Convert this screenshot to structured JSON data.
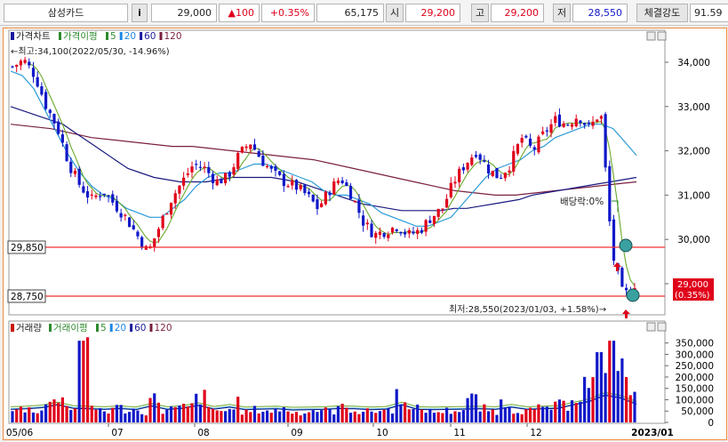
{
  "ticker_bar": {
    "stock_name": "삼성카드",
    "info_button": "i",
    "price": "29,000",
    "change": "▲100",
    "change_pct": "+0.35%",
    "volume": "65,175",
    "open_label": "시",
    "open": "29,200",
    "high_label": "고",
    "high": "29,200",
    "low_label": "저",
    "low": "28,550",
    "strength_label": "체결강도",
    "strength": "91.59"
  },
  "price_panel": {
    "legend": [
      {
        "label": "가격차트",
        "color": "#1a1a9c"
      },
      {
        "label": "가격이평",
        "color": "#2e8b2e"
      },
      {
        "label": "5",
        "color": "#2e8b2e"
      },
      {
        "label": "20",
        "color": "#1e88e5"
      },
      {
        "label": "60",
        "color": "#1a1a9c"
      },
      {
        "label": "120",
        "color": "#7a1f3d"
      }
    ],
    "max_annotation": "←최고:34,100(2022/05/30,  -14.96%)",
    "min_annotation": "최저:28,550(2023/01/03,  +1.58%)→",
    "dividend_label": "배당락:0%",
    "hline_1": "29,850",
    "hline_2": "28,750",
    "current_price_box": "29,000",
    "current_pct_box": "(0.35%)",
    "y_ticks": [
      "34,000",
      "33,000",
      "32,000",
      "31,000",
      "30,000",
      "29,000"
    ]
  },
  "volume_panel": {
    "legend": [
      {
        "label": "거래량",
        "color": "#cc1111"
      },
      {
        "label": "거래이평",
        "color": "#2e8b2e"
      },
      {
        "label": "5",
        "color": "#2e8b2e"
      },
      {
        "label": "20",
        "color": "#1e88e5"
      },
      {
        "label": "60",
        "color": "#1a1a9c"
      },
      {
        "label": "120",
        "color": "#7a1f3d"
      }
    ],
    "y_ticks": [
      "350,000",
      "300,000",
      "250,000",
      "200,000",
      "150,000",
      "100,000",
      "50,000",
      "0"
    ]
  },
  "x_axis": {
    "labels": [
      "05/06",
      "07",
      "08",
      "09",
      "10",
      "11",
      "12",
      "2023/01"
    ]
  },
  "colors": {
    "up": "#e0001a",
    "down": "#1018c8",
    "ma5": "#6aa82a",
    "ma20": "#2a9ad8",
    "ma60": "#1a1a80",
    "ma120": "#7a2040",
    "hline": "#f03030",
    "frame": "#f08a3c"
  },
  "chart_data": {
    "type": "candlestick",
    "symbol": "삼성카드",
    "y_range": [
      28500,
      34300
    ],
    "highest": {
      "price": 34100,
      "date": "2022/05/30"
    },
    "lowest": {
      "price": 28550,
      "date": "2023/01/03"
    },
    "last": {
      "price": 29000,
      "change": 100,
      "change_pct": 0.35
    },
    "close_path": [
      33900,
      34050,
      33700,
      33000,
      32500,
      31700,
      31200,
      30900,
      31100,
      30800,
      30500,
      30100,
      29700,
      30300,
      30900,
      31300,
      31700,
      31600,
      31300,
      31400,
      31900,
      32200,
      31800,
      31500,
      31300,
      31200,
      31000,
      30700,
      31100,
      31400,
      31000,
      30400,
      30100,
      30200,
      30300,
      30100,
      30200,
      30500,
      30700,
      31300,
      31700,
      32000,
      31600,
      31400,
      31700,
      32300,
      32000,
      32400,
      32700,
      32600,
      32800,
      32500,
      32900,
      29700,
      28700,
      29000
    ],
    "ma20_path": [
      33800,
      33700,
      33400,
      32900,
      32400,
      31900,
      31500,
      31200,
      31000,
      30900,
      30700,
      30600,
      30500,
      30500,
      30700,
      30900,
      31200,
      31400,
      31500,
      31500,
      31600,
      31700,
      31700,
      31600,
      31500,
      31400,
      31300,
      31100,
      31000,
      31000,
      30900,
      30800,
      30600,
      30500,
      30400,
      30300,
      30300,
      30400,
      30500,
      30800,
      31100,
      31400,
      31600,
      31700,
      31800,
      32000,
      32100,
      32300,
      32400,
      32500,
      32600,
      32600,
      32500,
      32200,
      31900
    ],
    "ma60_path": [
      33000,
      32900,
      32800,
      32700,
      32600,
      32400,
      32200,
      32000,
      31800,
      31600,
      31500,
      31400,
      31350,
      31300,
      31300,
      31300,
      31350,
      31400,
      31400,
      31400,
      31400,
      31350,
      31300,
      31200,
      31100,
      31000,
      30900,
      30800,
      30750,
      30700,
      30650,
      30650,
      30650,
      30650,
      30700,
      30700,
      30750,
      30800,
      30850,
      30900,
      31000,
      31050,
      31100,
      31150,
      31200,
      31250,
      31300,
      31350,
      31400
    ],
    "ma120_path": [
      32600,
      32550,
      32500,
      32400,
      32300,
      32250,
      32200,
      32150,
      32100,
      32100,
      32050,
      32000,
      31950,
      31900,
      31850,
      31800,
      31700,
      31600,
      31500,
      31400,
      31300,
      31200,
      31100,
      31050,
      31000,
      31000,
      31050,
      31100,
      31150,
      31200,
      31250,
      31300
    ],
    "volume_bars": [
      60000,
      70000,
      65000,
      90000,
      140000,
      80000,
      360000,
      70000,
      60000,
      75000,
      65000,
      55000,
      120000,
      60000,
      70000,
      80000,
      130000,
      65000,
      60000,
      100000,
      55000,
      65000,
      60000,
      70000,
      50000,
      55000,
      65000,
      60000,
      75000,
      70000,
      55000,
      60000,
      65000,
      140000,
      60000,
      70000,
      55000,
      60000,
      65000,
      120000,
      70000,
      60000,
      100000,
      65000,
      60000,
      70000,
      80000,
      90000,
      140000,
      200000,
      310000,
      360000,
      260000,
      150000
    ]
  }
}
